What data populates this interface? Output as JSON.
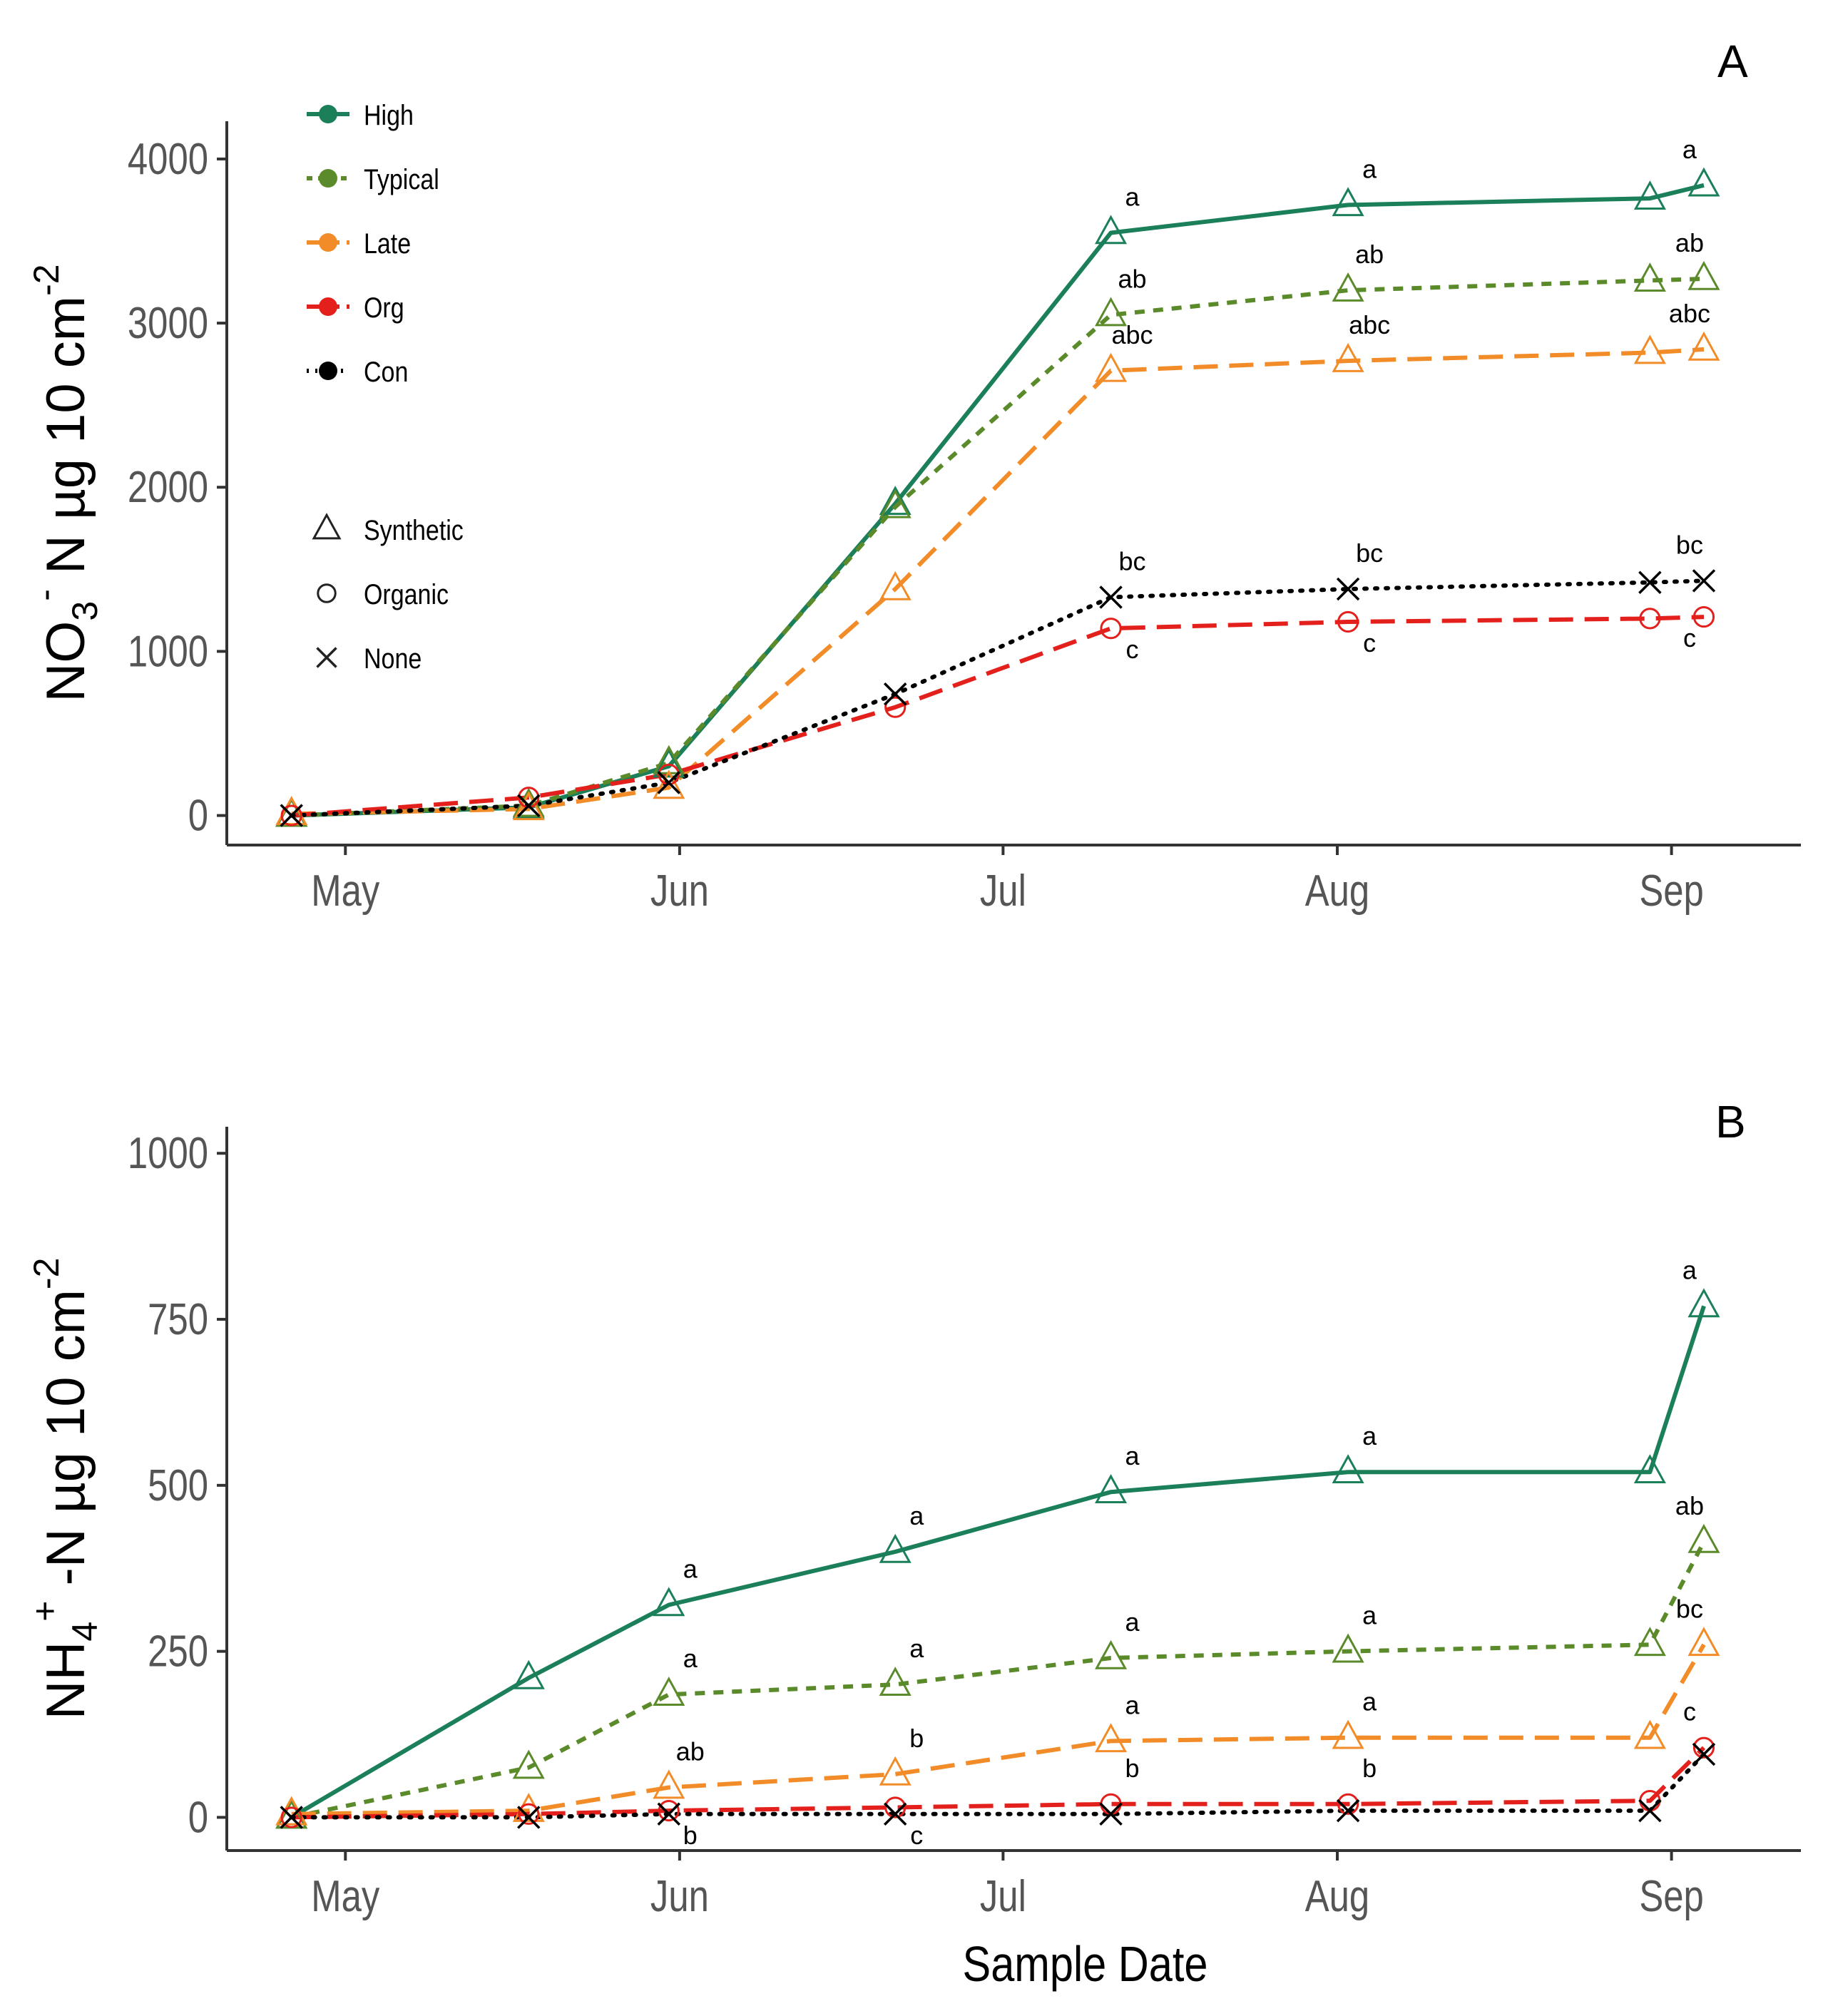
{
  "chart_data": [
    {
      "type": "line",
      "panel_label": "A",
      "ylabel": "NO3- -N µg 10 cm-2",
      "ylabel_parts": {
        "pre": "NO",
        "sub": "3",
        "sup": "-",
        "post": " N µg 10 cm",
        "sup2": "-2"
      },
      "xlabel": "",
      "x_ticks": [
        "May",
        "Jun",
        "Jul",
        "Aug",
        "Sep"
      ],
      "x_tick_days": [
        1,
        32,
        62,
        93,
        124
      ],
      "x_range_days": [
        -10,
        136
      ],
      "y_ticks": [
        0,
        1000,
        2000,
        3000,
        4000
      ],
      "ylim": [
        -180,
        4230
      ],
      "x_days": [
        -4,
        18,
        31,
        52,
        72,
        94,
        122,
        127
      ],
      "series": [
        {
          "name": "High",
          "color": "#1b7f5a",
          "dash": "",
          "width": 6,
          "marker": "triangle",
          "values": [
            0,
            50,
            300,
            1900,
            3550,
            3720,
            3760,
            3840
          ],
          "labels": [
            "",
            "",
            "",
            "",
            "a",
            "a",
            "",
            "a"
          ],
          "label_pos": "above"
        },
        {
          "name": "Typical",
          "color": "#5a8a2a",
          "dash": "14,12",
          "width": 6,
          "marker": "triangle",
          "values": [
            0,
            60,
            320,
            1880,
            3050,
            3200,
            3260,
            3270
          ],
          "labels": [
            "",
            "",
            "",
            "",
            "ab",
            "ab",
            "",
            "ab"
          ],
          "label_pos": "above"
        },
        {
          "name": "Late",
          "color": "#f28c28",
          "dash": "34,16",
          "width": 6,
          "marker": "triangle",
          "values": [
            10,
            40,
            170,
            1380,
            2710,
            2770,
            2820,
            2840
          ],
          "labels": [
            "",
            "",
            "",
            "",
            "abc",
            "abc",
            "",
            "abc"
          ],
          "label_pos": "above"
        },
        {
          "name": "Org",
          "color": "#e3201b",
          "dash": "34,16",
          "width": 6,
          "marker": "circle",
          "values": [
            0,
            110,
            250,
            660,
            1140,
            1180,
            1200,
            1210
          ],
          "labels": [
            "",
            "",
            "",
            "",
            "c",
            "c",
            "",
            "c"
          ],
          "label_pos": "below"
        },
        {
          "name": "Con",
          "color": "#000000",
          "dash": "3,12",
          "width": 6,
          "marker": "x",
          "values": [
            0,
            60,
            200,
            740,
            1330,
            1380,
            1420,
            1430
          ],
          "labels": [
            "",
            "",
            "",
            "",
            "bc",
            "bc",
            "",
            "bc"
          ],
          "label_pos": "above"
        }
      ]
    },
    {
      "type": "line",
      "panel_label": "B",
      "ylabel": "NH4+ -N µg 10 cm-2",
      "ylabel_parts": {
        "pre": "NH",
        "sub": "4",
        "sup": "+",
        "post": " -N µg 10 cm",
        "sup2": "-2"
      },
      "xlabel": "Sample Date",
      "x_ticks": [
        "May",
        "Jun",
        "Jul",
        "Aug",
        "Sep"
      ],
      "x_tick_days": [
        1,
        32,
        62,
        93,
        124
      ],
      "x_range_days": [
        -10,
        136
      ],
      "y_ticks": [
        0,
        250,
        500,
        750,
        1000
      ],
      "ylim": [
        -50,
        1040
      ],
      "x_days": [
        -4,
        18,
        31,
        52,
        72,
        94,
        122,
        127
      ],
      "series": [
        {
          "name": "High",
          "color": "#1b7f5a",
          "dash": "",
          "width": 6,
          "marker": "triangle",
          "values": [
            0,
            210,
            320,
            400,
            490,
            520,
            520,
            770
          ],
          "labels": [
            "",
            "",
            "a",
            "a",
            "a",
            "a",
            "",
            "a"
          ],
          "label_pos": "above"
        },
        {
          "name": "Typical",
          "color": "#5a8a2a",
          "dash": "14,12",
          "width": 6,
          "marker": "triangle",
          "values": [
            0,
            75,
            185,
            200,
            240,
            250,
            260,
            415
          ],
          "labels": [
            "",
            "",
            "a",
            "a",
            "a",
            "a",
            "",
            "ab"
          ],
          "label_pos": "above"
        },
        {
          "name": "Late",
          "color": "#f28c28",
          "dash": "34,16",
          "width": 6,
          "marker": "triangle",
          "values": [
            5,
            10,
            45,
            65,
            115,
            120,
            120,
            260
          ],
          "labels": [
            "",
            "",
            "ab",
            "b",
            "a",
            "a",
            "",
            "bc"
          ],
          "label_pos": "above"
        },
        {
          "name": "Org",
          "color": "#e3201b",
          "dash": "34,16",
          "width": 6,
          "marker": "circle",
          "values": [
            0,
            5,
            10,
            15,
            20,
            20,
            25,
            105
          ],
          "labels": [
            "",
            "",
            "",
            "",
            "b",
            "b",
            "",
            "c"
          ],
          "label_pos": "above"
        },
        {
          "name": "Con",
          "color": "#000000",
          "dash": "3,12",
          "width": 6,
          "marker": "x",
          "values": [
            0,
            0,
            5,
            5,
            5,
            10,
            10,
            95
          ],
          "labels": [
            "",
            "",
            "b",
            "c",
            "",
            "",
            "",
            ""
          ],
          "label_pos": "below"
        }
      ]
    }
  ],
  "legend": {
    "treatments": [
      {
        "label": "High",
        "color": "#1b7f5a",
        "dash": ""
      },
      {
        "label": "Typical",
        "color": "#5a8a2a",
        "dash": "8,8"
      },
      {
        "label": "Late",
        "color": "#f28c28",
        "dash": "18,10"
      },
      {
        "label": "Org",
        "color": "#e3201b",
        "dash": "18,10"
      },
      {
        "label": "Con",
        "color": "#000000",
        "dash": "3,9"
      }
    ],
    "sources": [
      {
        "label": "Synthetic",
        "marker": "triangle"
      },
      {
        "label": "Organic",
        "marker": "circle"
      },
      {
        "label": "None",
        "marker": "x"
      }
    ]
  }
}
